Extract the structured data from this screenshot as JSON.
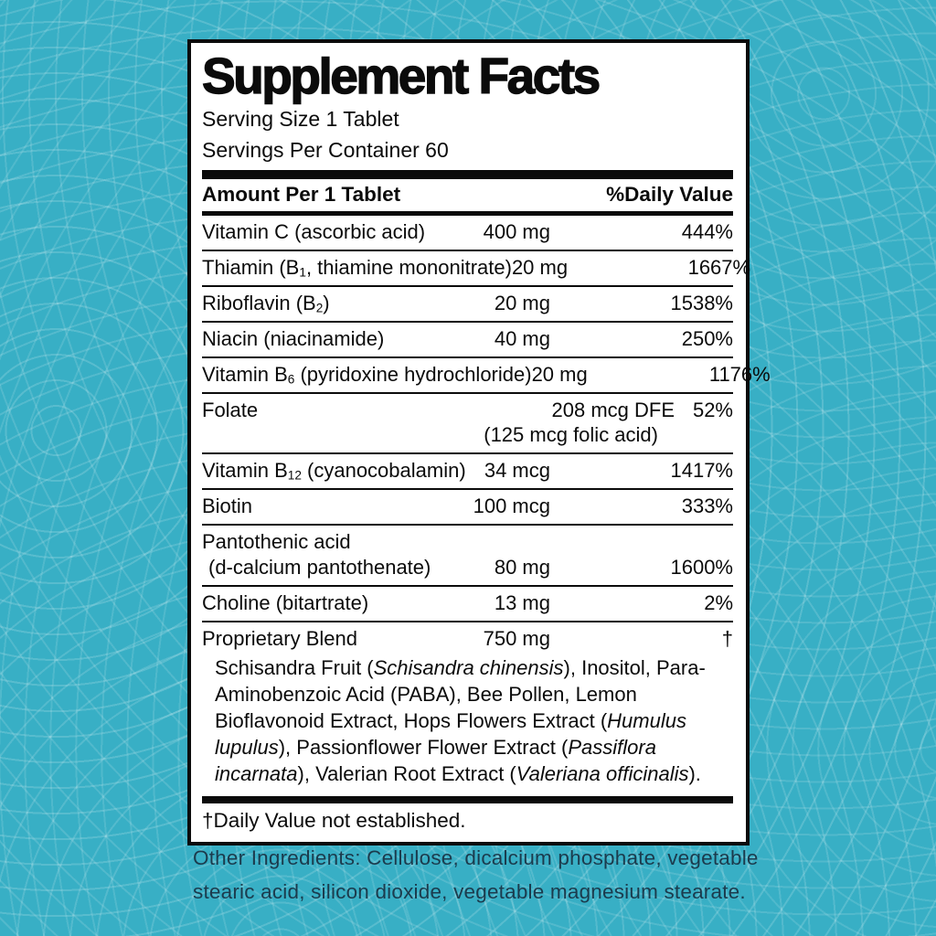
{
  "background": {
    "base_color": "#38AFC5",
    "pattern_line_color": "rgba(255,255,255,0.15)"
  },
  "label": {
    "title": "Supplement Facts",
    "serving_size": "Serving Size 1 Tablet",
    "servings_per_container": "Servings Per Container 60",
    "columns": {
      "amount_header": "Amount Per 1 Tablet",
      "dv_header": "%Daily Value"
    },
    "rows": [
      {
        "name": [
          [
            {
              "t": "Vitamin C (ascorbic acid)"
            }
          ]
        ],
        "amount": "400 mg",
        "dv": "444%"
      },
      {
        "name": [
          [
            {
              "t": "Thiamin (B"
            },
            {
              "t": "1",
              "sub": true
            },
            {
              "t": ", thiamine mononitrate)"
            }
          ]
        ],
        "amount": "20 mg",
        "dv": "1667%"
      },
      {
        "name": [
          [
            {
              "t": "Riboflavin (B"
            },
            {
              "t": "2",
              "sub": true
            },
            {
              "t": ")"
            }
          ]
        ],
        "amount": "20 mg",
        "dv": "1538%"
      },
      {
        "name": [
          [
            {
              "t": "Niacin (niacinamide)"
            }
          ]
        ],
        "amount": "40 mg",
        "dv": "250%"
      },
      {
        "name": [
          [
            {
              "t": "Vitamin B"
            },
            {
              "t": "6",
              "sub": true
            },
            {
              "t": " (pyridoxine hydrochloride)"
            }
          ]
        ],
        "amount": "20 mg",
        "dv": "1176%"
      },
      {
        "name": [
          [
            {
              "t": "Folate"
            }
          ]
        ],
        "amount": "208 mcg DFE",
        "dv": "52%",
        "wide_amount": true,
        "amount_note": "(125 mcg folic acid)"
      },
      {
        "name": [
          [
            {
              "t": "Vitamin B"
            },
            {
              "t": "12",
              "sub": true
            },
            {
              "t": " (cyanocobalamin)"
            }
          ]
        ],
        "amount": "34 mcg",
        "dv": "1417%"
      },
      {
        "name": [
          [
            {
              "t": "Biotin"
            }
          ]
        ],
        "amount": "100 mcg",
        "dv": "333%"
      },
      {
        "name": [
          [
            {
              "t": "Pantothenic acid"
            }
          ],
          [
            {
              "t": "(d-calcium pantothenate)"
            }
          ]
        ],
        "amount": "80 mg",
        "dv": "1600%"
      },
      {
        "name": [
          [
            {
              "t": "Choline (bitartrate)"
            }
          ]
        ],
        "amount": "13 mg",
        "dv": "2%"
      },
      {
        "name": [
          [
            {
              "t": "Proprietary Blend"
            }
          ]
        ],
        "amount": "750 mg",
        "dv": "†",
        "desc": [
          {
            "t": "Schisandra Fruit ("
          },
          {
            "t": "Schisandra chinensis",
            "i": true
          },
          {
            "t": "), Inositol, Para-Aminobenzoic Acid (PABA), Bee Pollen, Lemon Bioflavonoid Extract, Hops Flowers Extract ("
          },
          {
            "t": "Humulus lupulus",
            "i": true
          },
          {
            "t": "), Passionflower Flower Extract ("
          },
          {
            "t": "Passiflora incarnata",
            "i": true
          },
          {
            "t": "), Valerian Root Extract ("
          },
          {
            "t": "Valeriana officinalis",
            "i": true
          },
          {
            "t": ")."
          }
        ]
      }
    ],
    "footnote": "†Daily Value not established."
  },
  "other_ingredients": "Other Ingredients: Cellulose, dicalcium phosphate, vegetable stearic acid, silicon dioxide, vegetable magnesium stearate."
}
